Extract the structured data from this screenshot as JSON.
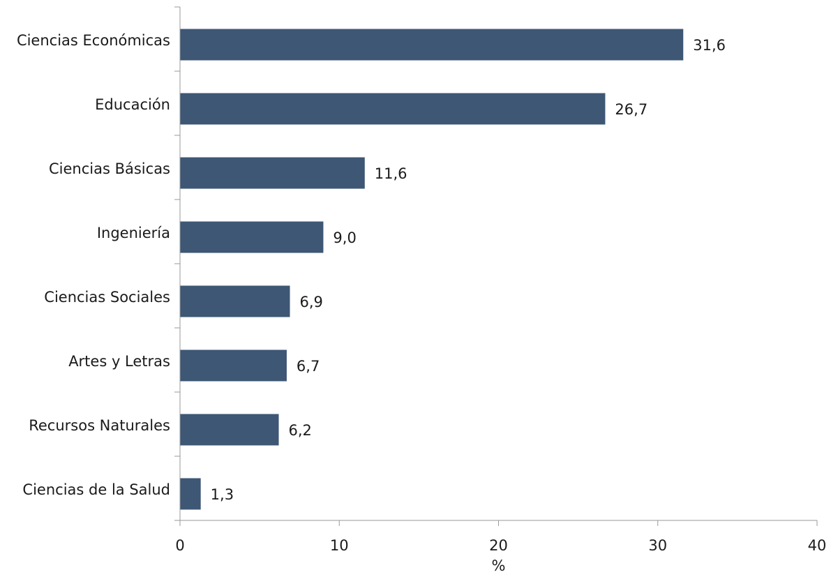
{
  "chart_data": {
    "type": "bar",
    "orientation": "horizontal",
    "title": "",
    "xlabel": "%",
    "ylabel": "",
    "categories": [
      "Ciencias Económicas",
      "Educación",
      "Ciencias Básicas",
      "Ingeniería",
      "Ciencias Sociales",
      "Artes y Letras",
      "Recursos Naturales",
      "Ciencias de la Salud"
    ],
    "values": [
      31.6,
      26.7,
      11.6,
      9.0,
      6.9,
      6.7,
      6.2,
      1.3
    ],
    "value_labels": [
      "31,6",
      "26,7",
      "11,6",
      "9,0",
      "6,9",
      "6,7",
      "6,2",
      "1,3"
    ],
    "xlim": [
      0,
      40
    ],
    "xticks": [
      0,
      10,
      20,
      30,
      40
    ],
    "xtick_labels": [
      "0",
      "10",
      "20",
      "30",
      "40"
    ],
    "grid": false,
    "legend": "none",
    "bar_color": "#3d5775"
  }
}
